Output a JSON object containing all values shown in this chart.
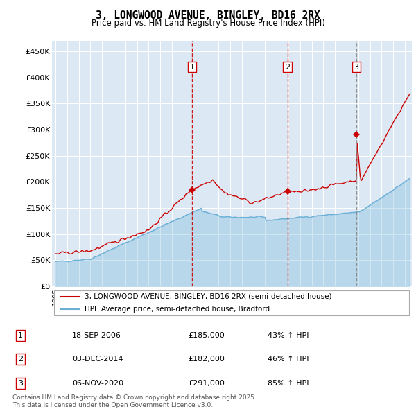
{
  "title": "3, LONGWOOD AVENUE, BINGLEY, BD16 2RX",
  "subtitle": "Price paid vs. HM Land Registry's House Price Index (HPI)",
  "ylabel_ticks": [
    "£0",
    "£50K",
    "£100K",
    "£150K",
    "£200K",
    "£250K",
    "£300K",
    "£350K",
    "£400K",
    "£450K"
  ],
  "ylim": [
    0,
    470000
  ],
  "background_color": "#dce9f5",
  "plot_bg": "#dce9f5",
  "sale_year_nums": [
    2006.72,
    2014.92,
    2020.84
  ],
  "sale_prices": [
    185000,
    182000,
    291000
  ],
  "sale_labels": [
    "1",
    "2",
    "3"
  ],
  "legend_line1": "3, LONGWOOD AVENUE, BINGLEY, BD16 2RX (semi-detached house)",
  "legend_line2": "HPI: Average price, semi-detached house, Bradford",
  "annotation_rows": [
    {
      "label": "1",
      "date": "18-SEP-2006",
      "price": "£185,000",
      "pct": "43% ↑ HPI"
    },
    {
      "label": "2",
      "date": "03-DEC-2014",
      "price": "£182,000",
      "pct": "46% ↑ HPI"
    },
    {
      "label": "3",
      "date": "06-NOV-2020",
      "price": "£291,000",
      "pct": "85% ↑ HPI"
    }
  ],
  "footer": "Contains HM Land Registry data © Crown copyright and database right 2025.\nThis data is licensed under the Open Government Licence v3.0.",
  "hpi_color": "#6aafd6",
  "price_color": "#cc0000",
  "vline_color": "#cc0000",
  "grid_color": "#ffffff"
}
